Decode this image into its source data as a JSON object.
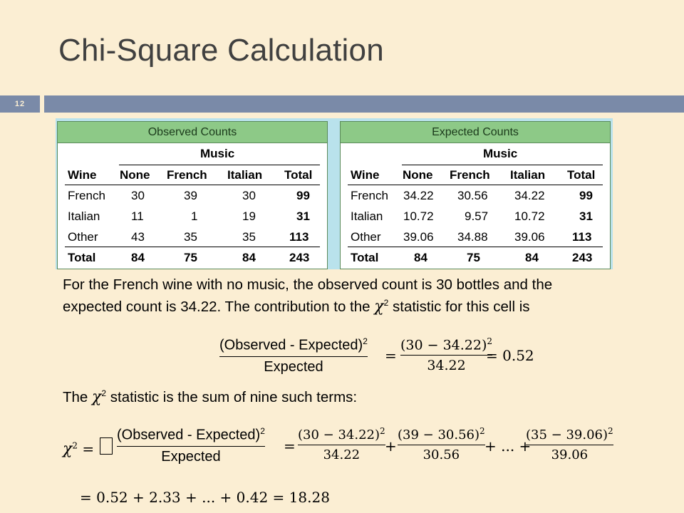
{
  "slide": {
    "title": "Chi-Square Calculation",
    "number": "12"
  },
  "observed": {
    "header": "Observed Counts",
    "music_label": "Music",
    "columns": [
      "Wine",
      "None",
      "French",
      "Italian",
      "Total"
    ],
    "rows": [
      [
        "French",
        "30",
        "39",
        "30",
        "99"
      ],
      [
        "Italian",
        "11",
        "1",
        "19",
        "31"
      ],
      [
        "Other",
        "43",
        "35",
        "35",
        "113"
      ],
      [
        "Total",
        "84",
        "75",
        "84",
        "243"
      ]
    ]
  },
  "expected": {
    "header": "Expected Counts",
    "music_label": "Music",
    "columns": [
      "Wine",
      "None",
      "French",
      "Italian",
      "Total"
    ],
    "rows": [
      [
        "French",
        "34.22",
        "30.56",
        "34.22",
        "99"
      ],
      [
        "Italian",
        "10.72",
        "9.57",
        "10.72",
        "31"
      ],
      [
        "Other",
        "39.06",
        "34.88",
        "39.06",
        "113"
      ],
      [
        "Total",
        "84",
        "75",
        "84",
        "243"
      ]
    ]
  },
  "text": {
    "para1_line1": "For the French wine with no music, the observed count is 30 bottles and the",
    "para1_line2_pre": "expected count is 34.22. The contribution to the",
    "para1_line2_post": "statistic for this cell is",
    "chi_symbol": "χ",
    "sq": "2",
    "para2_pre": "The",
    "para2_post": "statistic is the sum of nine such terms:"
  },
  "formula1": {
    "numerator": "(Observed - Expected)",
    "denominator": "Expected",
    "num2": "(30 − 34.22)",
    "den2": "34.22",
    "result": "= 0.52"
  },
  "formula2": {
    "lhs": "=",
    "numerator": "(Observed - Expected)",
    "denominator": "Expected",
    "t1_num": "(30 − 34.22)",
    "t1_den": "34.22",
    "t2_num": "(39 − 30.56)",
    "t2_den": "30.56",
    "t3_num": "(35 − 39.06)",
    "t3_den": "39.06",
    "ellipsis": "+ ... +",
    "final": "= 0.52 + 2.33 + ... + 0.42 = 18.28"
  }
}
